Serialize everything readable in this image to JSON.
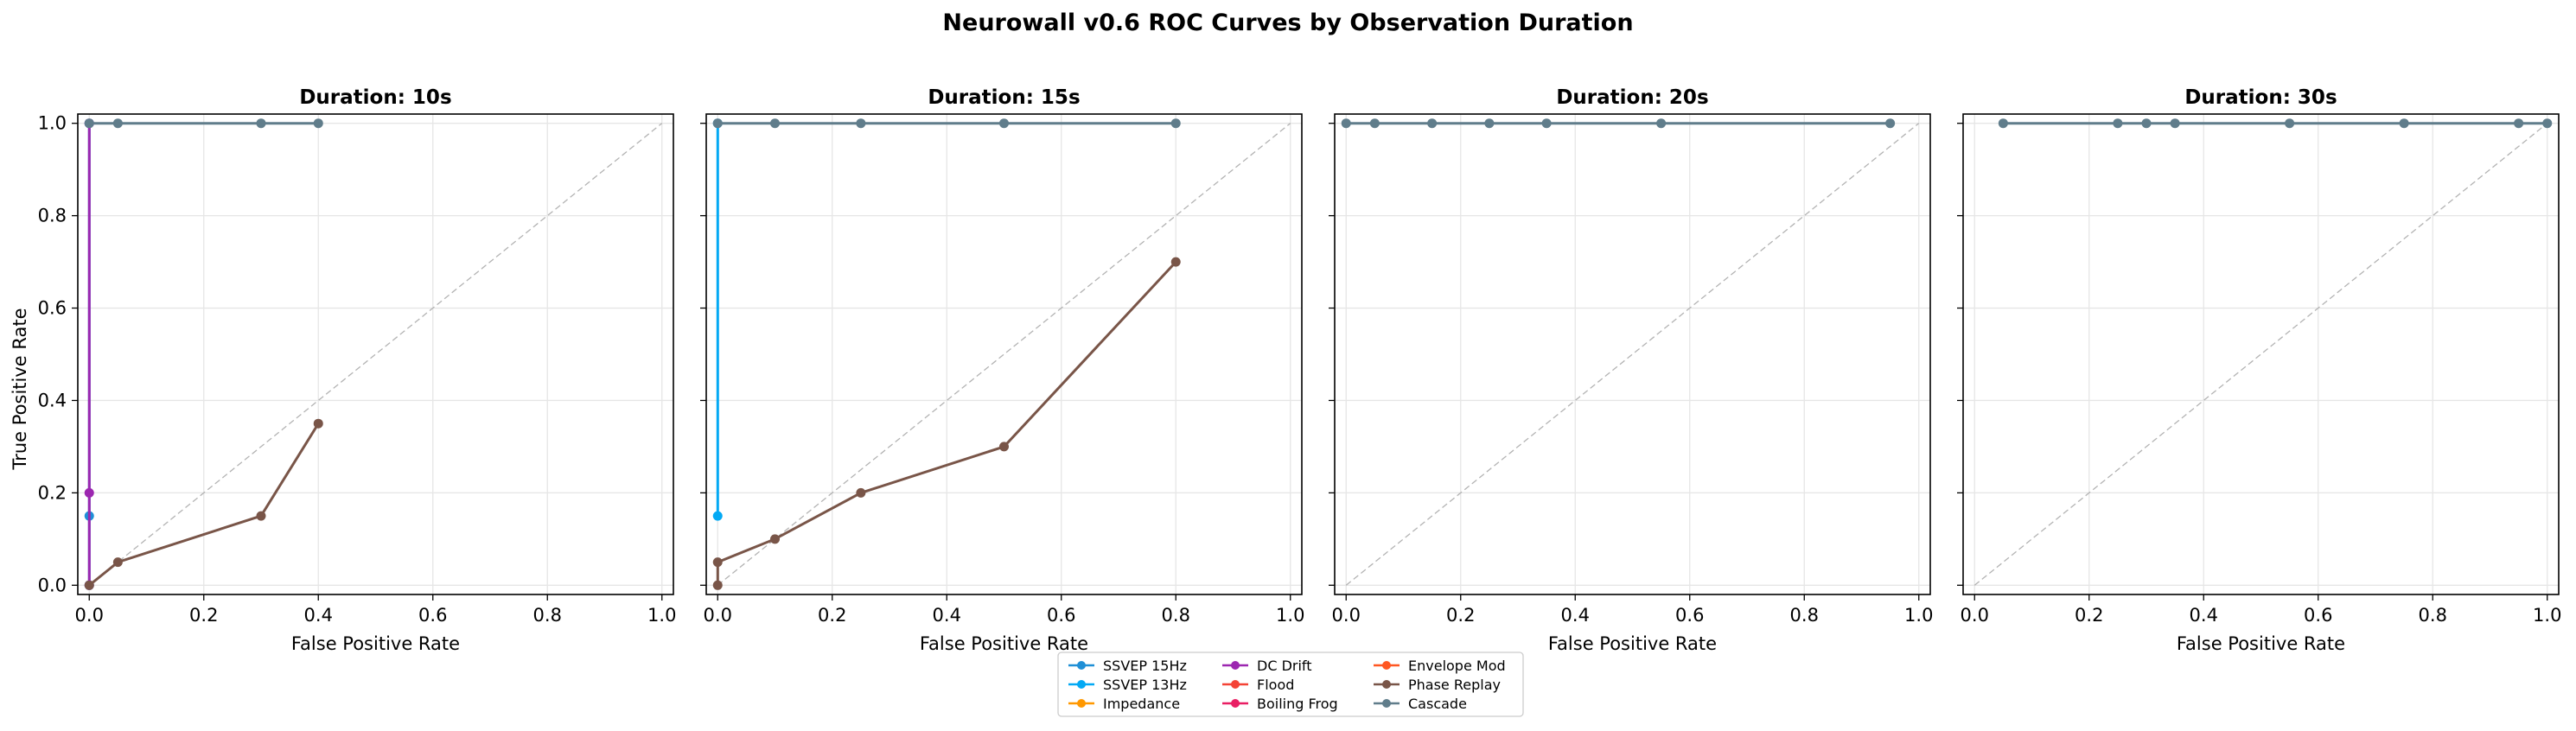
{
  "figure": {
    "title": "Neurowall v0.6 ROC Curves by Observation Duration"
  },
  "chart_data": [
    {
      "type": "line",
      "title": "Duration: 10s",
      "xlabel": "False Positive Rate",
      "ylabel": "True Positive Rate",
      "xlim": [
        -0.02,
        1.02
      ],
      "ylim": [
        -0.02,
        1.02
      ],
      "xticks": [
        "0.0",
        "0.2",
        "0.4",
        "0.6",
        "0.8",
        "1.0"
      ],
      "yticks": [
        "0.0",
        "0.2",
        "0.4",
        "0.6",
        "0.8",
        "1.0"
      ],
      "grid": true,
      "diagonal": true,
      "series": [
        {
          "name": "SSVEP 15Hz",
          "color": "#1f8fd6",
          "points": [
            [
              0,
              0
            ],
            [
              0,
              0.15
            ],
            [
              0,
              1.0
            ]
          ]
        },
        {
          "name": "DC Drift",
          "color": "#9c27b0",
          "points": [
            [
              0,
              0
            ],
            [
              0,
              0.2
            ],
            [
              0,
              1.0
            ]
          ]
        },
        {
          "name": "Phase Replay",
          "color": "#795548",
          "points": [
            [
              0,
              0
            ],
            [
              0.05,
              0.05
            ],
            [
              0.3,
              0.15
            ],
            [
              0.4,
              0.35
            ]
          ]
        },
        {
          "name": "Cascade",
          "color": "#607d8b",
          "points": [
            [
              0,
              1.0
            ],
            [
              0.05,
              1.0
            ],
            [
              0.3,
              1.0
            ],
            [
              0.4,
              1.0
            ]
          ]
        }
      ]
    },
    {
      "type": "line",
      "title": "Duration: 15s",
      "xlabel": "False Positive Rate",
      "ylabel": "",
      "xlim": [
        -0.02,
        1.02
      ],
      "ylim": [
        -0.02,
        1.02
      ],
      "xticks": [
        "0.0",
        "0.2",
        "0.4",
        "0.6",
        "0.8",
        "1.0"
      ],
      "yticks": [],
      "grid": true,
      "diagonal": true,
      "series": [
        {
          "name": "SSVEP 13Hz",
          "color": "#03a9f4",
          "points": [
            [
              0,
              0.15
            ],
            [
              0,
              1.0
            ]
          ]
        },
        {
          "name": "Phase Replay",
          "color": "#795548",
          "points": [
            [
              0,
              0
            ],
            [
              0,
              0.05
            ],
            [
              0.1,
              0.1
            ],
            [
              0.25,
              0.2
            ],
            [
              0.5,
              0.3
            ],
            [
              0.8,
              0.7
            ]
          ]
        },
        {
          "name": "Cascade",
          "color": "#607d8b",
          "points": [
            [
              0,
              1.0
            ],
            [
              0.1,
              1.0
            ],
            [
              0.25,
              1.0
            ],
            [
              0.5,
              1.0
            ],
            [
              0.8,
              1.0
            ]
          ]
        }
      ]
    },
    {
      "type": "line",
      "title": "Duration: 20s",
      "xlabel": "False Positive Rate",
      "ylabel": "",
      "xlim": [
        -0.02,
        1.02
      ],
      "ylim": [
        -0.02,
        1.02
      ],
      "xticks": [
        "0.0",
        "0.2",
        "0.4",
        "0.6",
        "0.8",
        "1.0"
      ],
      "yticks": [],
      "grid": true,
      "diagonal": true,
      "series": [
        {
          "name": "Cascade",
          "color": "#607d8b",
          "points": [
            [
              0,
              1.0
            ],
            [
              0.05,
              1.0
            ],
            [
              0.15,
              1.0
            ],
            [
              0.25,
              1.0
            ],
            [
              0.35,
              1.0
            ],
            [
              0.55,
              1.0
            ],
            [
              0.95,
              1.0
            ]
          ]
        }
      ]
    },
    {
      "type": "line",
      "title": "Duration: 30s",
      "xlabel": "False Positive Rate",
      "ylabel": "",
      "xlim": [
        -0.02,
        1.02
      ],
      "ylim": [
        -0.02,
        1.02
      ],
      "xticks": [
        "0.0",
        "0.2",
        "0.4",
        "0.6",
        "0.8",
        "1.0"
      ],
      "yticks": [],
      "grid": true,
      "diagonal": true,
      "series": [
        {
          "name": "Cascade",
          "color": "#607d8b",
          "points": [
            [
              0.05,
              1.0
            ],
            [
              0.25,
              1.0
            ],
            [
              0.3,
              1.0
            ],
            [
              0.35,
              1.0
            ],
            [
              0.55,
              1.0
            ],
            [
              0.75,
              1.0
            ],
            [
              0.95,
              1.0
            ],
            [
              1.0,
              1.0
            ]
          ]
        }
      ]
    }
  ],
  "legend": {
    "placement": "bottom-center",
    "entries": [
      {
        "label": "SSVEP 15Hz",
        "color": "#1f8fd6"
      },
      {
        "label": "SSVEP 13Hz",
        "color": "#03a9f4"
      },
      {
        "label": "Impedance",
        "color": "#ff9800"
      },
      {
        "label": "DC Drift",
        "color": "#9c27b0"
      },
      {
        "label": "Flood",
        "color": "#f44336"
      },
      {
        "label": "Boiling Frog",
        "color": "#e91e63"
      },
      {
        "label": "Envelope Mod",
        "color": "#ff5722"
      },
      {
        "label": "Phase Replay",
        "color": "#795548"
      },
      {
        "label": "Cascade",
        "color": "#607d8b"
      }
    ]
  }
}
